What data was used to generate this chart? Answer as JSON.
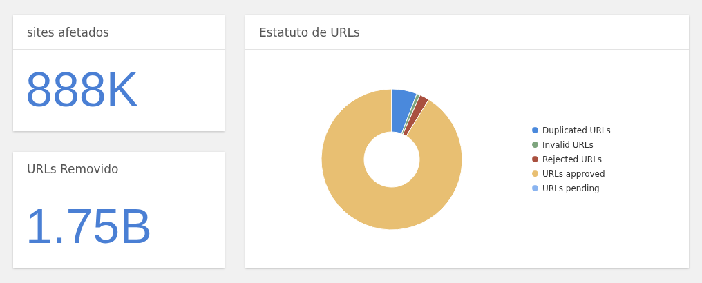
{
  "chart_data": [
    {
      "type": "other",
      "title": "sites afetados",
      "annotations": [
        "888K"
      ]
    },
    {
      "type": "other",
      "title": "URLs Removido",
      "annotations": [
        "1.75B"
      ]
    },
    {
      "type": "donut",
      "title": "Estatuto de URLs",
      "categories": [
        "Duplicated URLs",
        "Invalid URLs",
        "Rejected URLs",
        "URLs approved",
        "URLs pending"
      ],
      "values": [
        5.8,
        0.8,
        2.2,
        91.2,
        0
      ],
      "colors": [
        "#4a89dc",
        "#7ea57e",
        "#a9503f",
        "#e8bf72",
        "#8ab4f0"
      ],
      "legend": "right"
    }
  ]
}
